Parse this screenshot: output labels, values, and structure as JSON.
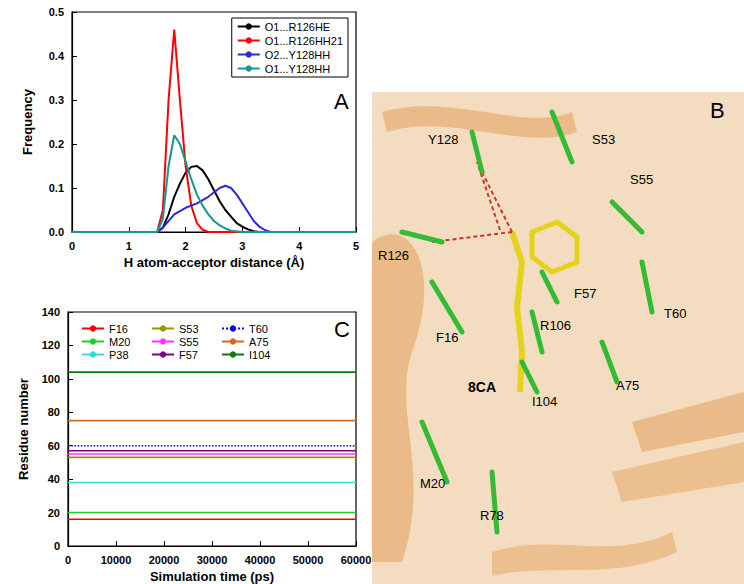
{
  "chart_data": [
    {
      "type": "line",
      "x_label": "H atom-acceptor distance (Å)",
      "y_label": "Frequency",
      "annotations": [
        "A"
      ],
      "xlim": [
        0,
        5
      ],
      "xticks": [
        0,
        1,
        2,
        3,
        4,
        5
      ],
      "ylim": [
        0,
        0.5
      ],
      "yticks": [
        {
          "value": 0,
          "label": "0.0"
        },
        {
          "value": 0.1,
          "label": "0.1"
        },
        {
          "value": 0.2,
          "label": "0.2"
        },
        {
          "value": 0.3,
          "label": "0.3"
        },
        {
          "value": 0.4,
          "label": "0.4"
        },
        {
          "value": 0.5,
          "label": "0.5"
        }
      ],
      "grid": false,
      "legend": "upper right",
      "series": [
        {
          "name": "O1...R126HE",
          "color": "#000000",
          "line_style": "solid",
          "x": [
            0,
            1.5,
            1.6,
            1.7,
            1.8,
            1.9,
            2.0,
            2.1,
            2.2,
            2.3,
            2.4,
            2.5,
            2.6,
            2.7,
            2.8,
            2.9,
            3.0,
            3.1,
            3.2,
            3.3,
            5
          ],
          "values": [
            0,
            0,
            0.01,
            0.04,
            0.08,
            0.11,
            0.135,
            0.148,
            0.15,
            0.14,
            0.12,
            0.095,
            0.07,
            0.05,
            0.035,
            0.02,
            0.012,
            0.006,
            0.002,
            0,
            0
          ]
        },
        {
          "name": "O1...R126HH21",
          "color": "#ff0000",
          "line_style": "solid",
          "x": [
            0,
            1.5,
            1.6,
            1.7,
            1.8,
            1.9,
            2.0,
            2.1,
            2.2,
            2.3,
            2.4,
            5
          ],
          "values": [
            0,
            0,
            0.05,
            0.3,
            0.46,
            0.3,
            0.15,
            0.06,
            0.02,
            0.005,
            0,
            0
          ]
        },
        {
          "name": "O2...Y128HH",
          "color": "#2b2bd6",
          "line_style": "solid",
          "x": [
            0,
            1.5,
            1.6,
            1.8,
            2.0,
            2.2,
            2.4,
            2.6,
            2.7,
            2.8,
            2.9,
            3.0,
            3.1,
            3.2,
            3.3,
            3.4,
            3.5,
            5
          ],
          "values": [
            0,
            0,
            0.01,
            0.04,
            0.055,
            0.065,
            0.08,
            0.1,
            0.105,
            0.1,
            0.085,
            0.065,
            0.045,
            0.025,
            0.012,
            0.004,
            0,
            0
          ]
        },
        {
          "name": "O1...Y128HH",
          "color": "#1a9494",
          "line_style": "solid",
          "x": [
            0,
            1.5,
            1.6,
            1.7,
            1.8,
            1.9,
            2.0,
            2.1,
            2.2,
            2.3,
            2.4,
            2.5,
            2.6,
            2.7,
            2.8,
            3.0,
            5
          ],
          "values": [
            0,
            0,
            0.03,
            0.15,
            0.22,
            0.2,
            0.16,
            0.12,
            0.085,
            0.06,
            0.04,
            0.025,
            0.015,
            0.008,
            0.003,
            0,
            0
          ]
        }
      ]
    },
    {
      "type": "line",
      "x_label": "Simulation time (ps)",
      "y_label": "Residue number",
      "annotations": [
        "C"
      ],
      "xlim": [
        0,
        60000
      ],
      "xticks": [
        0,
        10000,
        20000,
        30000,
        40000,
        50000,
        60000
      ],
      "ylim": [
        0,
        140
      ],
      "yticks": [
        0,
        20,
        40,
        60,
        80,
        100,
        120,
        140
      ],
      "grid": false,
      "legend": "upper left",
      "series": [
        {
          "name": "F16",
          "color": "#ff0000",
          "line_style": "solid",
          "x": [
            0,
            60000
          ],
          "values": [
            16,
            16
          ]
        },
        {
          "name": "M20",
          "color": "#22cc22",
          "line_style": "solid",
          "x": [
            0,
            60000
          ],
          "values": [
            20,
            20
          ]
        },
        {
          "name": "P38",
          "color": "#33dddd",
          "line_style": "solid",
          "x": [
            0,
            60000
          ],
          "values": [
            38,
            38
          ]
        },
        {
          "name": "S53",
          "color": "#999900",
          "line_style": "solid",
          "x": [
            0,
            60000
          ],
          "values": [
            53,
            53
          ]
        },
        {
          "name": "S55",
          "color": "#ff33ff",
          "line_style": "solid",
          "x": [
            0,
            60000
          ],
          "values": [
            55,
            55
          ]
        },
        {
          "name": "F57",
          "color": "#800080",
          "line_style": "solid",
          "x": [
            0,
            60000
          ],
          "values": [
            57,
            57
          ]
        },
        {
          "name": "T60",
          "color": "#0000ff",
          "line_style": "dotted",
          "x": [
            0,
            60000
          ],
          "values": [
            60,
            60
          ]
        },
        {
          "name": "A75",
          "color": "#d2691e",
          "line_style": "solid",
          "x": [
            0,
            60000
          ],
          "values": [
            75,
            75
          ]
        },
        {
          "name": "I104",
          "color": "#008000",
          "line_style": "solid",
          "x": [
            0,
            60000
          ],
          "values": [
            104,
            104
          ]
        }
      ]
    }
  ],
  "panel_b": {
    "label": "B",
    "ligand": "8CA",
    "residues": [
      "Y128",
      "S53",
      "S55",
      "R126",
      "F57",
      "R106",
      "T60",
      "F16",
      "I104",
      "A75",
      "M20",
      "R78"
    ]
  }
}
